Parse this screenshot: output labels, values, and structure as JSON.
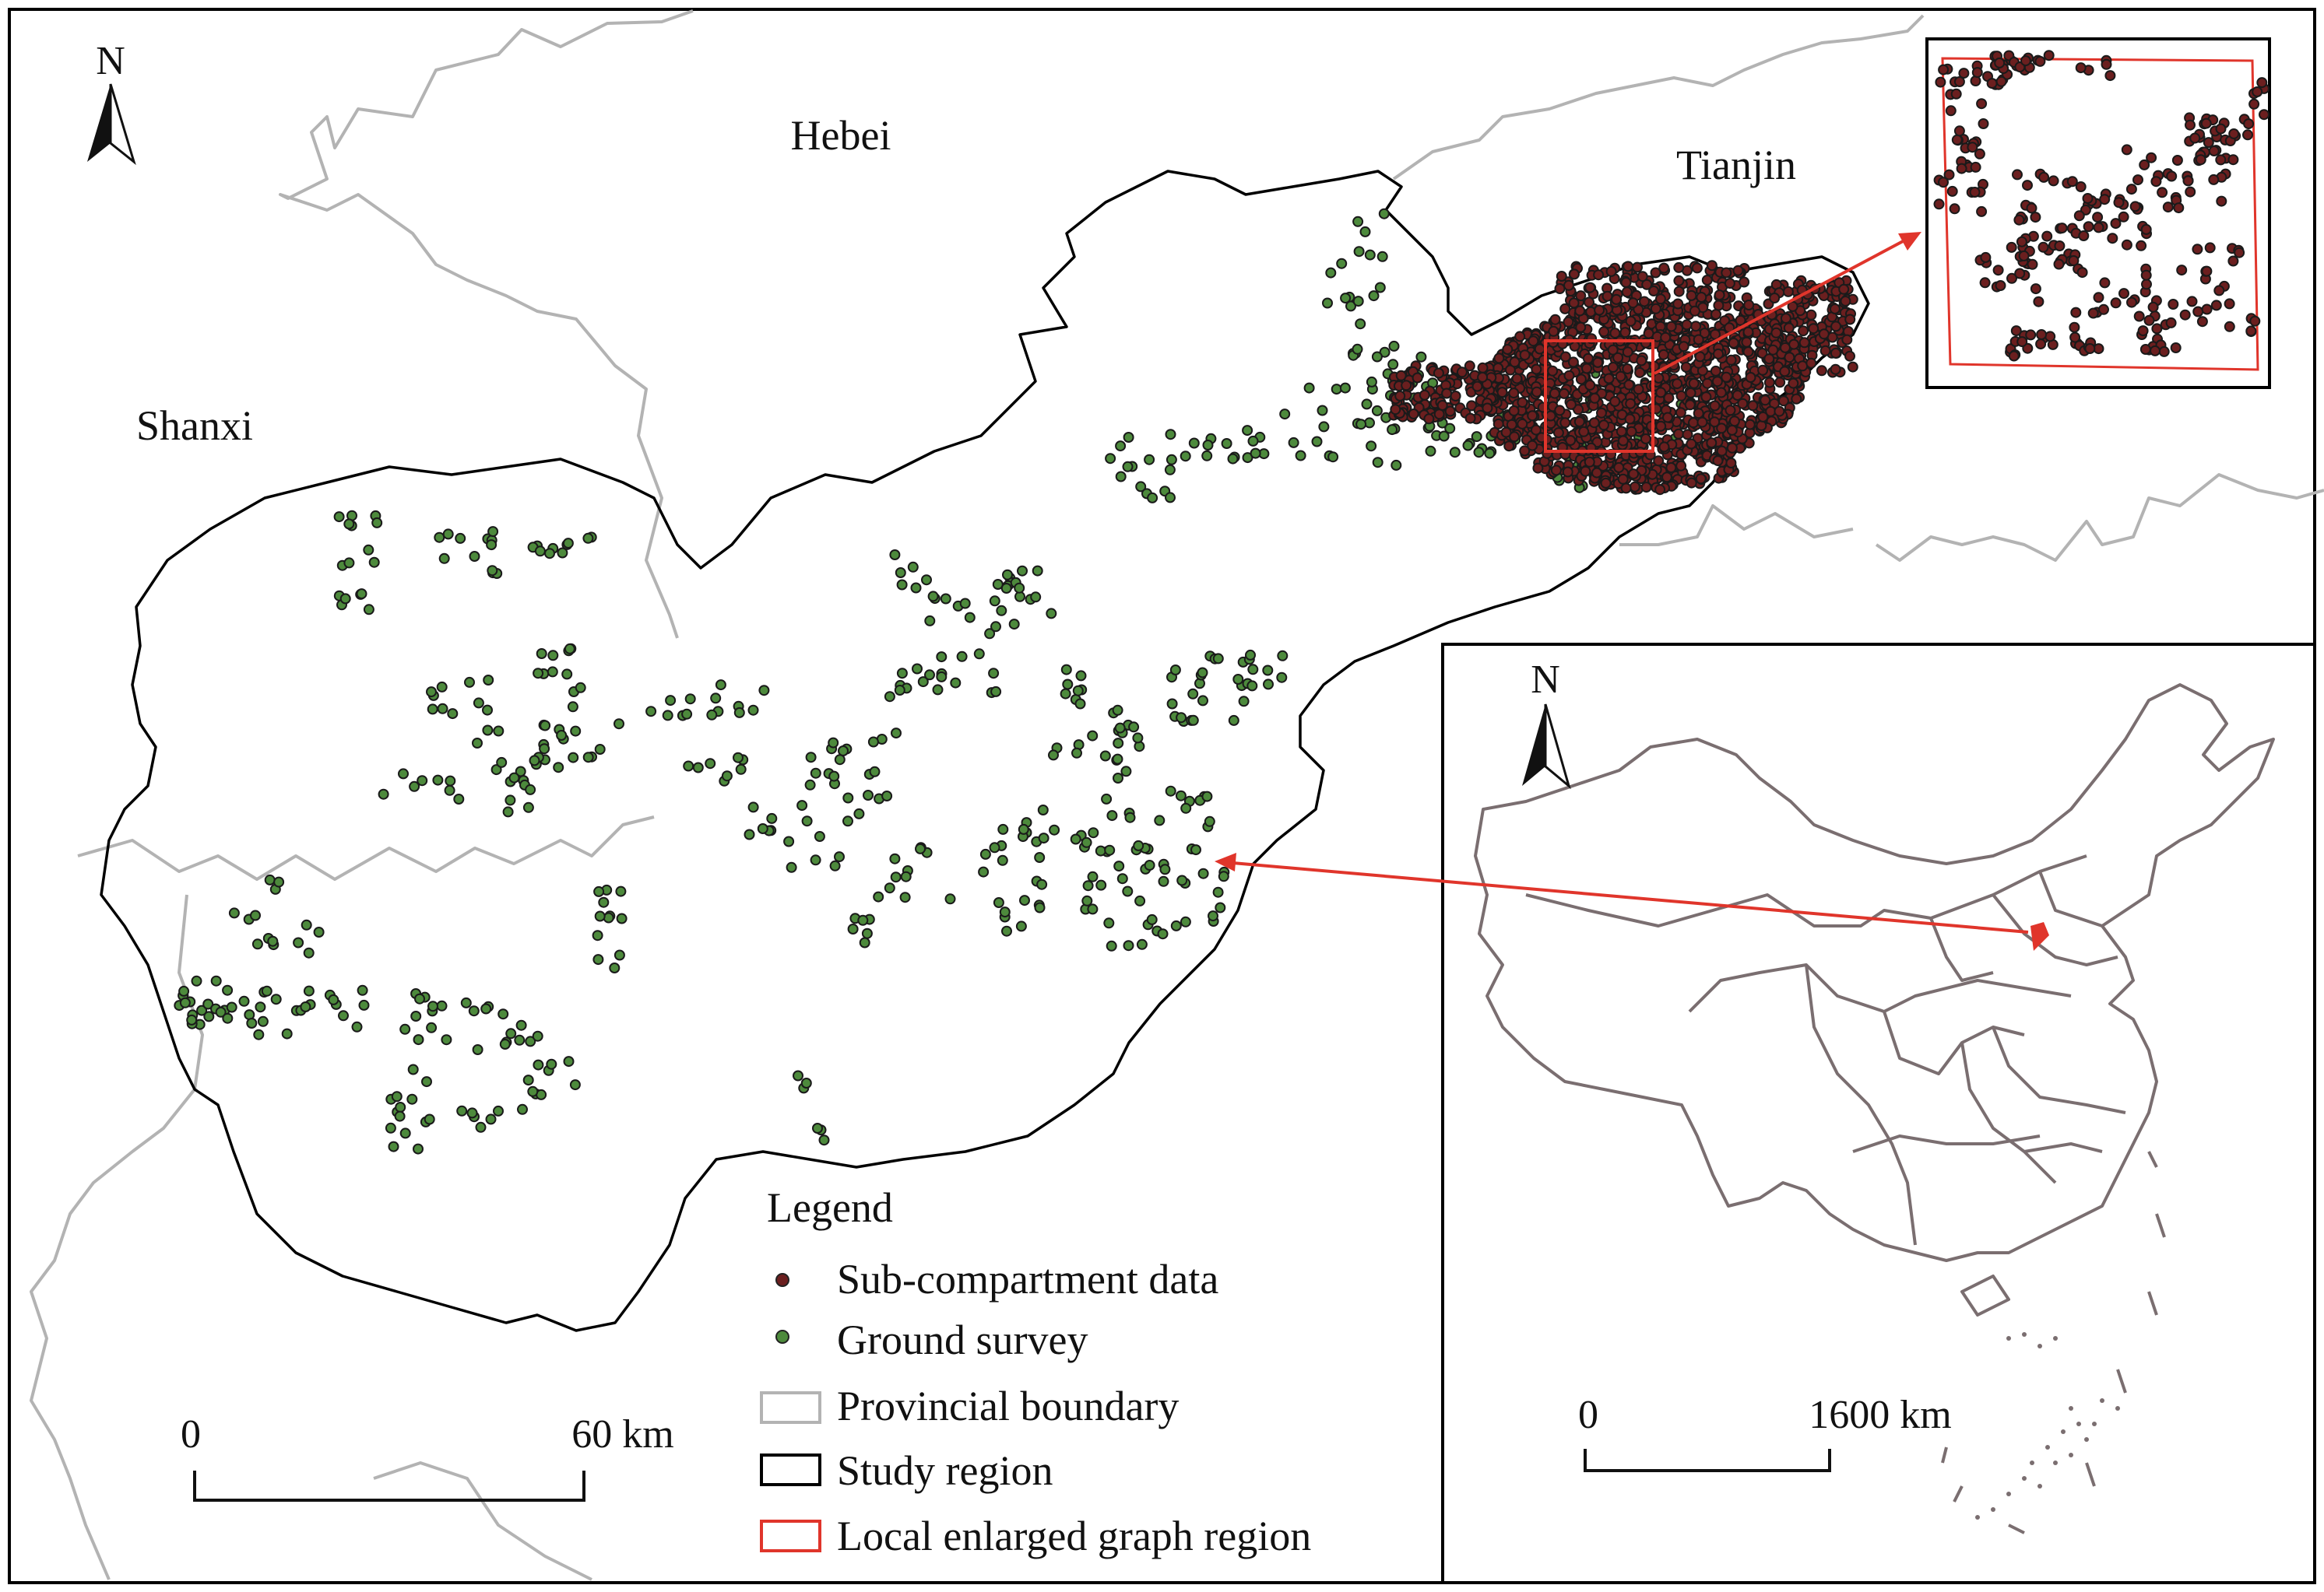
{
  "regions": {
    "hebei": "Hebei",
    "tianjin": "Tianjin",
    "shanxi": "Shanxi"
  },
  "north_arrow": {
    "label": "N"
  },
  "scale_bar": {
    "start": "0",
    "end": "60 km"
  },
  "inset_china": {
    "north_label": "N",
    "scale_start": "0",
    "scale_end": "1600 km"
  },
  "legend": {
    "title": "Legend",
    "items": [
      {
        "label": "Sub-compartment data",
        "symbol": "dot",
        "color": "#6b1f1f"
      },
      {
        "label": "Ground survey",
        "symbol": "dot",
        "color": "#4d8a3c"
      },
      {
        "label": "Provincial boundary",
        "symbol": "rect",
        "color": "#b3b3b3"
      },
      {
        "label": "Study region",
        "symbol": "rect",
        "color": "#000000"
      },
      {
        "label": "Local enlarged graph region",
        "symbol": "rect",
        "color": "#e0352b"
      }
    ]
  },
  "colors": {
    "sub_compartment": "#6b1f1f",
    "ground_survey": "#4d8a3c",
    "provincial_boundary": "#b3b3b3",
    "study_region": "#000000",
    "enlarged_region": "#e0352b",
    "china_boundary": "#7a6e70"
  }
}
